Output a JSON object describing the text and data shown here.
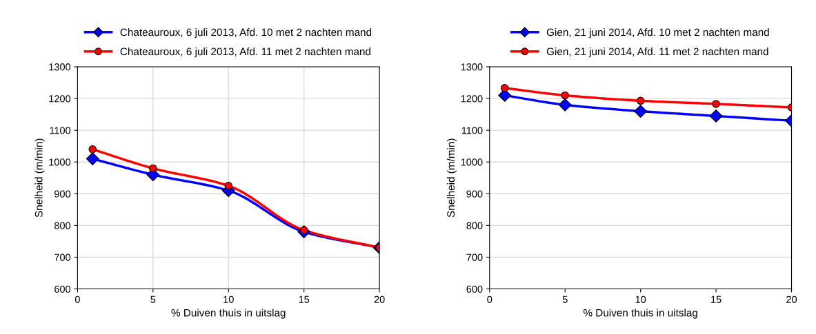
{
  "chart_data": [
    {
      "type": "line",
      "xlabel": "% Duiven thuis in uitslag",
      "ylabel": "Snelheid (m/min)",
      "x": [
        1,
        5,
        10,
        15,
        20
      ],
      "xlim": [
        0,
        20
      ],
      "xticks": [
        0,
        5,
        10,
        15,
        20
      ],
      "ylim": [
        600,
        1300
      ],
      "yticks": [
        600,
        700,
        800,
        900,
        1000,
        1100,
        1200,
        1300
      ],
      "grid": true,
      "legend": "top",
      "series": [
        {
          "name": "Chateauroux, 6 juli 2013, Afd. 10 met 2 nachten mand",
          "color": "#0000ff",
          "marker": "diamond",
          "values": [
            1010,
            960,
            910,
            780,
            730
          ]
        },
        {
          "name": "Chateauroux, 6 juli 2013, Afd. 11 met 2 nachten mand",
          "color": "#ff0000",
          "marker": "circle",
          "values": [
            1040,
            980,
            925,
            785,
            730
          ]
        }
      ]
    },
    {
      "type": "line",
      "xlabel": "% Duiven thuis in uitslag",
      "ylabel": "Snelheid (m/min)",
      "x": [
        1,
        5,
        10,
        15,
        20
      ],
      "xlim": [
        0,
        20
      ],
      "xticks": [
        0,
        5,
        10,
        15,
        20
      ],
      "ylim": [
        600,
        1300
      ],
      "yticks": [
        600,
        700,
        800,
        900,
        1000,
        1100,
        1200,
        1300
      ],
      "grid": "y",
      "legend": "top",
      "series": [
        {
          "name": "Gien, 21 juni 2014, Afd. 10 met 2 nachten mand",
          "color": "#0000ff",
          "marker": "diamond",
          "values": [
            1210,
            1180,
            1160,
            1145,
            1130
          ]
        },
        {
          "name": "Gien, 21 juni 2014, Afd. 11 met 2 nachten mand",
          "color": "#ff0000",
          "marker": "circle",
          "values": [
            1233,
            1210,
            1193,
            1183,
            1172
          ]
        }
      ]
    }
  ]
}
